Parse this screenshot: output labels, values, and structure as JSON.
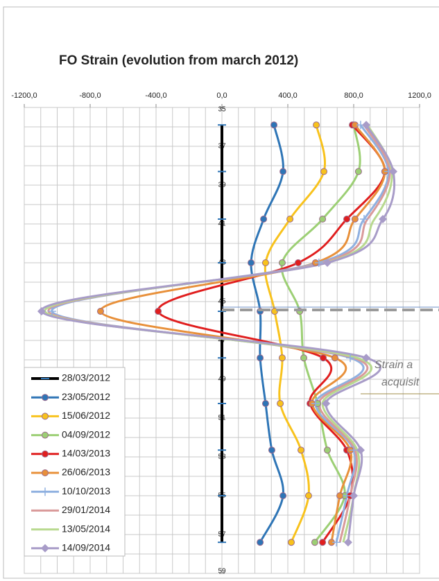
{
  "chart_data": {
    "type": "line",
    "title": "FO Strain (evolution from march 2012)",
    "xlim": [
      -1200,
      1200
    ],
    "xticks": [
      {
        "value": -1200,
        "label": "-1200,0"
      },
      {
        "value": -800,
        "label": "-800,0"
      },
      {
        "value": -400,
        "label": "-400,0"
      },
      {
        "value": 0,
        "label": "0,0"
      },
      {
        "value": 400,
        "label": "400,0"
      },
      {
        "value": 800,
        "label": "800,0"
      },
      {
        "value": 1200,
        "label": "1200,0"
      }
    ],
    "ylim": [
      35,
      59
    ],
    "yticks": [
      35,
      37,
      39,
      41,
      43,
      45,
      47,
      49,
      51,
      53,
      55,
      57,
      59
    ],
    "y_inverted": true,
    "grid": true,
    "xgrid_step": 100,
    "ygrid_step": 1,
    "legend": "lower left",
    "y": [
      35.9,
      38.3,
      40.75,
      43.0,
      45.5,
      47.9,
      50.25,
      52.65,
      55.0,
      57.4
    ],
    "series": [
      {
        "name": "28/03/2012",
        "color": "#000000",
        "marker": "dash",
        "width": 4,
        "values": [
          0,
          0,
          0,
          0,
          0,
          0,
          0,
          0,
          0,
          0
        ]
      },
      {
        "name": "23/05/2012",
        "color": "#2e75b6",
        "marker": "circle",
        "width": 3,
        "values": [
          316,
          371,
          253,
          177,
          232,
          232,
          265,
          303,
          371,
          232
        ]
      },
      {
        "name": "15/06/2012",
        "color": "#f8c21c",
        "marker": "circle",
        "width": 3,
        "values": [
          573,
          619,
          413,
          265,
          320,
          366,
          354,
          480,
          526,
          421
        ]
      },
      {
        "name": "04/09/2012",
        "color": "#9ccf74",
        "marker": "circle",
        "width": 3,
        "values": [
          800,
          829,
          611,
          366,
          472,
          497,
          581,
          640,
          745,
          564
        ]
      },
      {
        "name": "14/03/2013",
        "color": "#e01e1e",
        "marker": "circle",
        "width": 3,
        "values": [
          792,
          989,
          758,
          463,
          -387,
          615,
          535,
          758,
          779,
          611
        ]
      },
      {
        "name": "26/06/2013",
        "color": "#e8903a",
        "marker": "circle",
        "width": 3,
        "values": [
          808,
          989,
          808,
          568,
          -737,
          686,
          547,
          779,
          716,
          665
        ]
      },
      {
        "name": "10/10/2013",
        "color": "#8fb0e0",
        "marker": "plus",
        "width": 3,
        "values": [
          842,
          1011,
          863,
          589,
          -1032,
          779,
          568,
          800,
          758,
          695
        ]
      },
      {
        "name": "29/01/2014",
        "color": "#d99a9a",
        "marker": "none",
        "width": 3,
        "values": [
          863,
          1019,
          884,
          611,
          -1053,
          800,
          589,
          808,
          779,
          716
        ]
      },
      {
        "name": "13/05/2014",
        "color": "#b8d98f",
        "marker": "none",
        "width": 3,
        "values": [
          884,
          1032,
          926,
          632,
          -1074,
          821,
          611,
          821,
          800,
          737
        ]
      },
      {
        "name": "14/09/2014",
        "color": "#a89cc8",
        "marker": "diamond",
        "width": 3,
        "values": [
          876,
          1040,
          977,
          640,
          -1095,
          876,
          632,
          842,
          800,
          766
        ]
      }
    ],
    "annotation": [
      "Strain a",
      "acquisit"
    ]
  }
}
